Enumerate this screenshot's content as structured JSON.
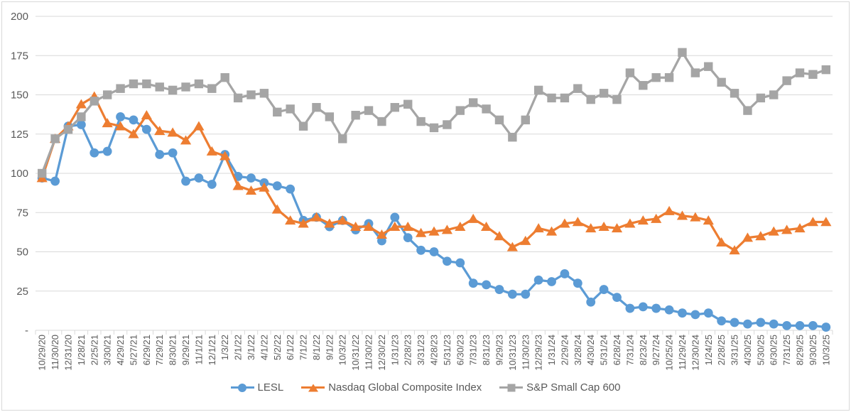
{
  "chart_data": {
    "type": "line",
    "title": "",
    "xlabel": "",
    "ylabel": "",
    "grid": true,
    "legend_position": "bottom",
    "background_color": "#FFFFFF",
    "border_color": "#D9D9D9",
    "gridline_color": "#D9D9D9",
    "label_color": "#595959",
    "y_axis": {
      "min": 0,
      "max": 200,
      "step": 25,
      "tick_labels": [
        "-",
        "25",
        "50",
        "75",
        "100",
        "125",
        "150",
        "175",
        "200"
      ]
    },
    "categories": [
      "10/29/20",
      "11/30/20",
      "12/31/20",
      "1/28/21",
      "2/25/21",
      "3/30/21",
      "4/29/21",
      "5/27/21",
      "6/29/21",
      "7/29/21",
      "8/30/21",
      "9/29/21",
      "11/1/21",
      "12/1/21",
      "1/3/22",
      "2/1/22",
      "3/1/22",
      "4/1/22",
      "5/2/22",
      "6/1/22",
      "7/1/22",
      "8/1/22",
      "9/1/22",
      "10/3/22",
      "10/31/22",
      "11/30/22",
      "12/30/22",
      "1/31/23",
      "2/28/23",
      "3/31/23",
      "4/28/23",
      "5/31/23",
      "6/30/23",
      "7/31/23",
      "8/31/23",
      "9/29/23",
      "10/31/23",
      "11/30/23",
      "12/29/23",
      "1/31/24",
      "2/29/24",
      "3/28/24",
      "4/30/24",
      "5/31/24",
      "6/28/24",
      "7/31/24",
      "8/23/24",
      "9/27/24",
      "10/25/24",
      "11/29/24",
      "12/30/24",
      "1/24/25",
      "2/28/25",
      "3/31/25",
      "4/30/25",
      "5/30/25",
      "6/30/25",
      "7/31/25",
      "8/29/25",
      "9/30/25",
      "10/3/25"
    ],
    "series": [
      {
        "name": "LESL",
        "color": "#5B9BD5",
        "marker": "circle",
        "values": [
          97,
          95,
          130,
          131,
          113,
          114,
          136,
          134,
          128,
          112,
          113,
          95,
          97,
          93,
          112,
          98,
          97,
          94,
          92,
          90,
          70,
          72,
          66,
          70,
          64,
          68,
          57,
          72,
          59,
          51,
          50,
          44,
          43,
          30,
          29,
          26,
          23,
          23,
          32,
          31,
          36,
          30,
          18,
          26,
          21,
          14,
          15,
          14,
          13,
          11,
          10,
          11,
          6,
          5,
          4,
          5,
          4,
          3,
          3,
          3,
          2
        ]
      },
      {
        "name": "Nasdaq Global Composite Index",
        "color": "#ED7D31",
        "marker": "triangle",
        "values": [
          97,
          122,
          130,
          144,
          149,
          132,
          130,
          125,
          137,
          127,
          126,
          121,
          130,
          114,
          111,
          92,
          89,
          91,
          77,
          70,
          68,
          72,
          68,
          70,
          66,
          66,
          61,
          66,
          66,
          62,
          63,
          64,
          66,
          71,
          66,
          60,
          53,
          57,
          65,
          63,
          68,
          69,
          65,
          66,
          65,
          68,
          70,
          71,
          76,
          73,
          72,
          70,
          56,
          51,
          59,
          60,
          63,
          64,
          65,
          69,
          69
        ]
      },
      {
        "name": "S&P Small Cap 600",
        "color": "#A5A5A5",
        "marker": "square",
        "values": [
          100,
          122,
          128,
          136,
          146,
          150,
          154,
          157,
          157,
          155,
          153,
          155,
          157,
          154,
          161,
          148,
          150,
          151,
          139,
          141,
          130,
          142,
          136,
          122,
          137,
          140,
          133,
          142,
          144,
          133,
          129,
          131,
          140,
          145,
          141,
          134,
          123,
          134,
          153,
          148,
          148,
          154,
          147,
          151,
          147,
          164,
          156,
          161,
          161,
          177,
          164,
          168,
          158,
          151,
          140,
          148,
          150,
          159,
          164,
          163,
          166
        ]
      }
    ]
  }
}
